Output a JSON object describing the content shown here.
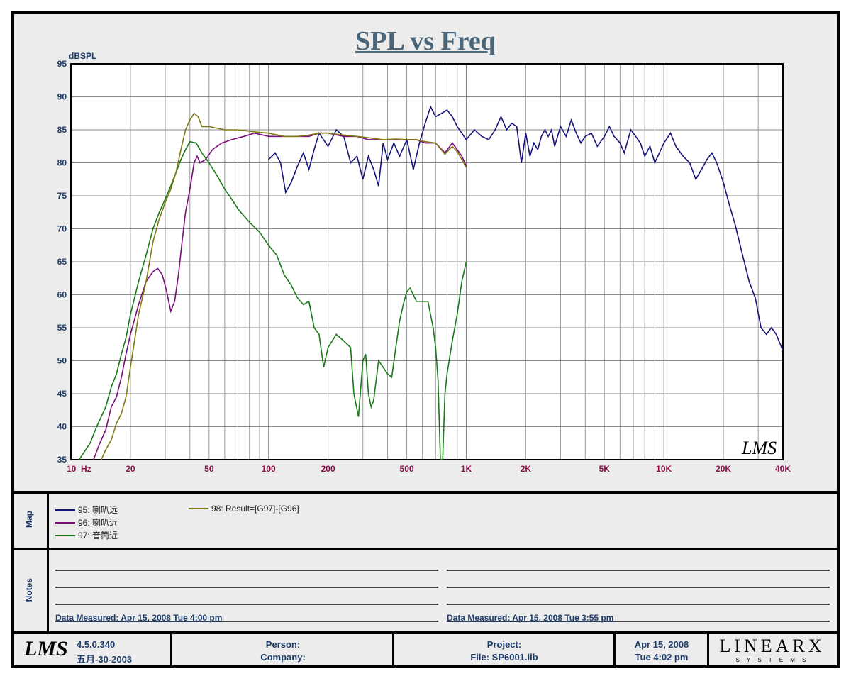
{
  "title": "SPL vs Freq",
  "chart_data": {
    "type": "line",
    "ylabel": "dBSPL",
    "xscale": "log",
    "xlim": [
      10,
      40000
    ],
    "ylim": [
      35,
      95
    ],
    "yticks": [
      35,
      40,
      45,
      50,
      55,
      60,
      65,
      70,
      75,
      80,
      85,
      90,
      95
    ],
    "xticks": [
      {
        "v": 10,
        "label": "10  Hz"
      },
      {
        "v": 20,
        "label": "20"
      },
      {
        "v": 50,
        "label": "50"
      },
      {
        "v": 100,
        "label": "100"
      },
      {
        "v": 200,
        "label": "200"
      },
      {
        "v": 500,
        "label": "500"
      },
      {
        "v": 1000,
        "label": "1K"
      },
      {
        "v": 2000,
        "label": "2K"
      },
      {
        "v": 5000,
        "label": "5K"
      },
      {
        "v": 10000,
        "label": "10K"
      },
      {
        "v": 20000,
        "label": "20K"
      },
      {
        "v": 40000,
        "label": "40K"
      }
    ],
    "series": [
      {
        "name": "95: 喇叭远",
        "color": "#14147a",
        "points": [
          [
            100,
            80.5
          ],
          [
            108,
            81.5
          ],
          [
            115,
            80
          ],
          [
            122,
            75.5
          ],
          [
            130,
            77
          ],
          [
            140,
            79.5
          ],
          [
            150,
            81.5
          ],
          [
            160,
            79
          ],
          [
            170,
            82
          ],
          [
            180,
            84.5
          ],
          [
            200,
            82.5
          ],
          [
            220,
            85
          ],
          [
            240,
            84
          ],
          [
            260,
            80
          ],
          [
            280,
            81
          ],
          [
            300,
            77.5
          ],
          [
            320,
            81
          ],
          [
            340,
            79
          ],
          [
            360,
            76.5
          ],
          [
            380,
            83
          ],
          [
            400,
            80.5
          ],
          [
            430,
            83
          ],
          [
            460,
            81
          ],
          [
            500,
            83.5
          ],
          [
            540,
            79
          ],
          [
            580,
            83
          ],
          [
            620,
            86
          ],
          [
            660,
            88.5
          ],
          [
            700,
            87
          ],
          [
            750,
            87.5
          ],
          [
            800,
            88
          ],
          [
            850,
            87
          ],
          [
            900,
            85.5
          ],
          [
            950,
            84.5
          ],
          [
            1000,
            83.5
          ],
          [
            1100,
            85
          ],
          [
            1200,
            84
          ],
          [
            1300,
            83.5
          ],
          [
            1400,
            85
          ],
          [
            1500,
            87
          ],
          [
            1600,
            85
          ],
          [
            1700,
            86
          ],
          [
            1800,
            85.5
          ],
          [
            1900,
            80
          ],
          [
            2000,
            84.5
          ],
          [
            2100,
            81
          ],
          [
            2200,
            83
          ],
          [
            2300,
            82
          ],
          [
            2400,
            84
          ],
          [
            2500,
            85
          ],
          [
            2600,
            84
          ],
          [
            2700,
            85
          ],
          [
            2800,
            82.5
          ],
          [
            3000,
            85.5
          ],
          [
            3200,
            84
          ],
          [
            3400,
            86.5
          ],
          [
            3600,
            84.5
          ],
          [
            3800,
            83
          ],
          [
            4000,
            84
          ],
          [
            4300,
            84.5
          ],
          [
            4600,
            82.5
          ],
          [
            5000,
            84
          ],
          [
            5300,
            85.5
          ],
          [
            5600,
            84
          ],
          [
            6000,
            83
          ],
          [
            6300,
            81.5
          ],
          [
            6800,
            85
          ],
          [
            7200,
            84
          ],
          [
            7600,
            83
          ],
          [
            8000,
            81
          ],
          [
            8500,
            82.5
          ],
          [
            9000,
            80
          ],
          [
            10000,
            83
          ],
          [
            10800,
            84.5
          ],
          [
            11500,
            82.5
          ],
          [
            12500,
            81
          ],
          [
            13500,
            80
          ],
          [
            14500,
            77.5
          ],
          [
            15500,
            79
          ],
          [
            16500,
            80.5
          ],
          [
            17500,
            81.5
          ],
          [
            18500,
            80
          ],
          [
            20000,
            77
          ],
          [
            21500,
            73.5
          ],
          [
            23000,
            70.5
          ],
          [
            25000,
            66
          ],
          [
            27000,
            62
          ],
          [
            29000,
            59.5
          ],
          [
            31000,
            55
          ],
          [
            33000,
            54
          ],
          [
            35000,
            55
          ],
          [
            37000,
            54
          ],
          [
            40000,
            51.5
          ]
        ]
      },
      {
        "name": "96: 喇叭近",
        "color": "#7a0e78",
        "points": [
          [
            12,
            33
          ],
          [
            13,
            35
          ],
          [
            14,
            37.5
          ],
          [
            15,
            39.5
          ],
          [
            16,
            43
          ],
          [
            17,
            44.5
          ],
          [
            18,
            47.5
          ],
          [
            19,
            51
          ],
          [
            20,
            54
          ],
          [
            22,
            58.5
          ],
          [
            24,
            62
          ],
          [
            26,
            63.5
          ],
          [
            27.5,
            64
          ],
          [
            29,
            63
          ],
          [
            30.5,
            60.5
          ],
          [
            32,
            57.5
          ],
          [
            33.5,
            59
          ],
          [
            35,
            63
          ],
          [
            36.5,
            68
          ],
          [
            38,
            72.5
          ],
          [
            40,
            76
          ],
          [
            42,
            80
          ],
          [
            43.5,
            81
          ],
          [
            45,
            80
          ],
          [
            48,
            80.5
          ],
          [
            52,
            82
          ],
          [
            58,
            83
          ],
          [
            65,
            83.5
          ],
          [
            75,
            84
          ],
          [
            85,
            84.5
          ],
          [
            100,
            84
          ],
          [
            120,
            84
          ],
          [
            140,
            84
          ],
          [
            160,
            84
          ],
          [
            180,
            84.5
          ],
          [
            200,
            84.5
          ],
          [
            240,
            84
          ],
          [
            280,
            84
          ],
          [
            320,
            83.5
          ],
          [
            380,
            83.5
          ],
          [
            440,
            83.5
          ],
          [
            500,
            83.5
          ],
          [
            560,
            83.5
          ],
          [
            620,
            83
          ],
          [
            700,
            83
          ],
          [
            780,
            81.5
          ],
          [
            850,
            83
          ],
          [
            900,
            82
          ],
          [
            950,
            81
          ],
          [
            1000,
            79.5
          ]
        ]
      },
      {
        "name": "97: 音筒近",
        "color": "#1a7a1a",
        "points": [
          [
            11,
            35
          ],
          [
            12.5,
            37.5
          ],
          [
            13.5,
            40
          ],
          [
            15,
            43
          ],
          [
            16,
            46
          ],
          [
            17,
            48
          ],
          [
            18,
            51
          ],
          [
            19,
            53.5
          ],
          [
            20,
            57
          ],
          [
            22,
            62
          ],
          [
            24,
            66
          ],
          [
            26,
            70
          ],
          [
            28,
            72.5
          ],
          [
            30,
            74.5
          ],
          [
            32,
            76.5
          ],
          [
            34,
            78.5
          ],
          [
            36,
            80.5
          ],
          [
            38,
            82
          ],
          [
            40,
            83.2
          ],
          [
            43,
            83
          ],
          [
            46,
            81.5
          ],
          [
            50,
            80
          ],
          [
            55,
            78
          ],
          [
            60,
            76
          ],
          [
            65,
            74.5
          ],
          [
            70,
            73
          ],
          [
            80,
            71
          ],
          [
            90,
            69.5
          ],
          [
            100,
            67.5
          ],
          [
            110,
            66
          ],
          [
            120,
            63
          ],
          [
            130,
            61.5
          ],
          [
            140,
            59.5
          ],
          [
            150,
            58.5
          ],
          [
            160,
            59
          ],
          [
            170,
            55
          ],
          [
            180,
            54
          ],
          [
            190,
            49
          ],
          [
            200,
            52
          ],
          [
            220,
            54
          ],
          [
            240,
            53
          ],
          [
            260,
            52
          ],
          [
            270,
            45
          ],
          [
            285,
            41.5
          ],
          [
            300,
            50
          ],
          [
            310,
            51
          ],
          [
            320,
            45
          ],
          [
            330,
            43
          ],
          [
            340,
            44
          ],
          [
            360,
            50
          ],
          [
            380,
            49
          ],
          [
            400,
            48
          ],
          [
            420,
            47.5
          ],
          [
            440,
            52
          ],
          [
            460,
            56
          ],
          [
            480,
            58.5
          ],
          [
            500,
            60.5
          ],
          [
            520,
            61
          ],
          [
            560,
            59
          ],
          [
            600,
            59
          ],
          [
            640,
            59
          ],
          [
            680,
            55
          ],
          [
            700,
            52
          ],
          [
            720,
            47
          ],
          [
            740,
            35
          ],
          [
            760,
            35
          ],
          [
            780,
            45
          ],
          [
            800,
            48
          ],
          [
            850,
            53
          ],
          [
            900,
            57
          ],
          [
            950,
            62
          ],
          [
            1000,
            65
          ]
        ]
      },
      {
        "name": "98: Result=[G97]-[G96]",
        "color": "#807a14",
        "points": [
          [
            14,
            34.5
          ],
          [
            15,
            36.5
          ],
          [
            16,
            38
          ],
          [
            17,
            40.5
          ],
          [
            18,
            42
          ],
          [
            19,
            44.5
          ],
          [
            20,
            49
          ],
          [
            22,
            57
          ],
          [
            24,
            62
          ],
          [
            26,
            68
          ],
          [
            28,
            71.5
          ],
          [
            30,
            74
          ],
          [
            32,
            76
          ],
          [
            34,
            78.5
          ],
          [
            36,
            82
          ],
          [
            38,
            85
          ],
          [
            40,
            86.5
          ],
          [
            42,
            87.5
          ],
          [
            44,
            87
          ],
          [
            46,
            85.5
          ],
          [
            50,
            85.5
          ],
          [
            60,
            85
          ],
          [
            70,
            85
          ],
          [
            80,
            84.8
          ],
          [
            90,
            84.6
          ],
          [
            100,
            84.5
          ],
          [
            120,
            84
          ],
          [
            140,
            84
          ],
          [
            160,
            84.2
          ],
          [
            180,
            84.5
          ],
          [
            200,
            84.5
          ],
          [
            240,
            84.2
          ],
          [
            280,
            84
          ],
          [
            320,
            83.8
          ],
          [
            380,
            83.5
          ],
          [
            440,
            83.6
          ],
          [
            500,
            83.5
          ],
          [
            560,
            83.5
          ],
          [
            620,
            83.2
          ],
          [
            700,
            83
          ],
          [
            780,
            81.3
          ],
          [
            850,
            82.5
          ],
          [
            900,
            81.7
          ],
          [
            950,
            80.5
          ],
          [
            1000,
            79.3
          ]
        ]
      }
    ]
  },
  "map": {
    "label": "Map",
    "legend": [
      "95: 喇叭远",
      "96: 喇叭近",
      "97: 音筒近",
      "98: Result=[G97]-[G96]"
    ]
  },
  "notes": {
    "label": "Notes",
    "left": "Data Measured: Apr 15, 2008  Tue  4:00 pm",
    "right": "Data Measured: Apr 15, 2008  Tue  3:55 pm"
  },
  "footer": {
    "logo": "LMS",
    "version": "4.5.0.340",
    "build_date": "五月-30-2003",
    "person_label": "Person:",
    "company_label": "Company:",
    "project_label": "Project:",
    "file_label": "File: SP6001.lib",
    "date": "Apr 15, 2008",
    "time": "Tue  4:02 pm",
    "brand": "LINEARX",
    "brand_sub": "S Y S T E M S"
  },
  "watermark": "LMS"
}
